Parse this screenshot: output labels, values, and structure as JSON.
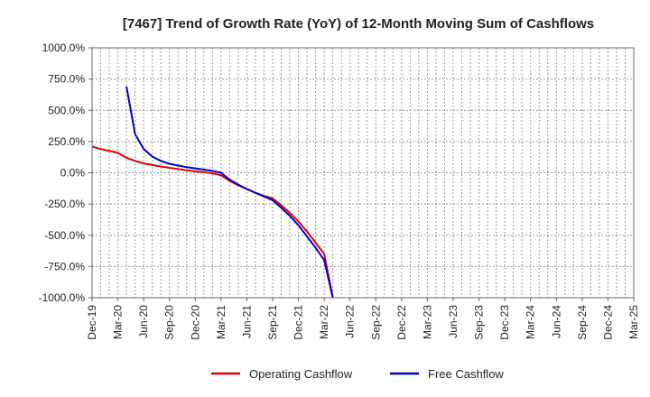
{
  "chart_data": {
    "type": "line",
    "title": "[7467]  Trend of Growth Rate (YoY) of 12-Month Moving Sum of Cashflows",
    "xlabel": "",
    "ylabel": "",
    "ylim": [
      -1000,
      1000
    ],
    "y_ticks": [
      "1000.0%",
      "750.0%",
      "500.0%",
      "250.0%",
      "0.0%",
      "-250.0%",
      "-500.0%",
      "-750.0%",
      "-1000.0%"
    ],
    "x_labels": [
      "Dec-19",
      "Mar-20",
      "Jun-20",
      "Sep-20",
      "Dec-20",
      "Mar-21",
      "Jun-21",
      "Sep-21",
      "Dec-21",
      "Mar-22",
      "Jun-22",
      "Sep-22",
      "Dec-22",
      "Mar-23",
      "Jun-23",
      "Sep-23",
      "Dec-23",
      "Mar-24",
      "Jun-24",
      "Sep-24",
      "Dec-24",
      "Mar-25"
    ],
    "grid": true,
    "legend_position": "bottom",
    "series": [
      {
        "name": "Operating Cashflow",
        "color": "#dd0000",
        "points": [
          [
            "Dec-19",
            210
          ],
          [
            "Jan-20",
            190
          ],
          [
            "Feb-20",
            175
          ],
          [
            "Mar-20",
            160
          ],
          [
            "Apr-20",
            120
          ],
          [
            "May-20",
            95
          ],
          [
            "Jun-20",
            75
          ],
          [
            "Jul-20",
            62
          ],
          [
            "Aug-20",
            50
          ],
          [
            "Sep-20",
            40
          ],
          [
            "Oct-20",
            30
          ],
          [
            "Nov-20",
            20
          ],
          [
            "Dec-20",
            12
          ],
          [
            "Jan-21",
            5
          ],
          [
            "Feb-21",
            -5
          ],
          [
            "Mar-21",
            -20
          ],
          [
            "Apr-21",
            -65
          ],
          [
            "May-21",
            -100
          ],
          [
            "Jun-21",
            -130
          ],
          [
            "Jul-21",
            -160
          ],
          [
            "Aug-21",
            -185
          ],
          [
            "Sep-21",
            -205
          ],
          [
            "Oct-21",
            -260
          ],
          [
            "Nov-21",
            -320
          ],
          [
            "Dec-21",
            -390
          ],
          [
            "Jan-22",
            -470
          ],
          [
            "Feb-22",
            -560
          ],
          [
            "Mar-22",
            -650
          ],
          [
            "Apr-22",
            -1000
          ]
        ]
      },
      {
        "name": "Free Cashflow",
        "color": "#0000cc",
        "points": [
          [
            "Apr-20",
            690
          ],
          [
            "May-20",
            310
          ],
          [
            "Jun-20",
            190
          ],
          [
            "Jul-20",
            130
          ],
          [
            "Aug-20",
            95
          ],
          [
            "Sep-20",
            72
          ],
          [
            "Oct-20",
            58
          ],
          [
            "Nov-20",
            45
          ],
          [
            "Dec-20",
            35
          ],
          [
            "Jan-21",
            25
          ],
          [
            "Feb-21",
            15
          ],
          [
            "Mar-21",
            0
          ],
          [
            "Apr-21",
            -55
          ],
          [
            "May-21",
            -95
          ],
          [
            "Jun-21",
            -130
          ],
          [
            "Jul-21",
            -160
          ],
          [
            "Aug-21",
            -190
          ],
          [
            "Sep-21",
            -220
          ],
          [
            "Oct-21",
            -280
          ],
          [
            "Nov-21",
            -345
          ],
          [
            "Dec-21",
            -420
          ],
          [
            "Jan-22",
            -510
          ],
          [
            "Feb-22",
            -600
          ],
          [
            "Mar-22",
            -700
          ],
          [
            "Apr-22",
            -1000
          ]
        ]
      }
    ]
  }
}
